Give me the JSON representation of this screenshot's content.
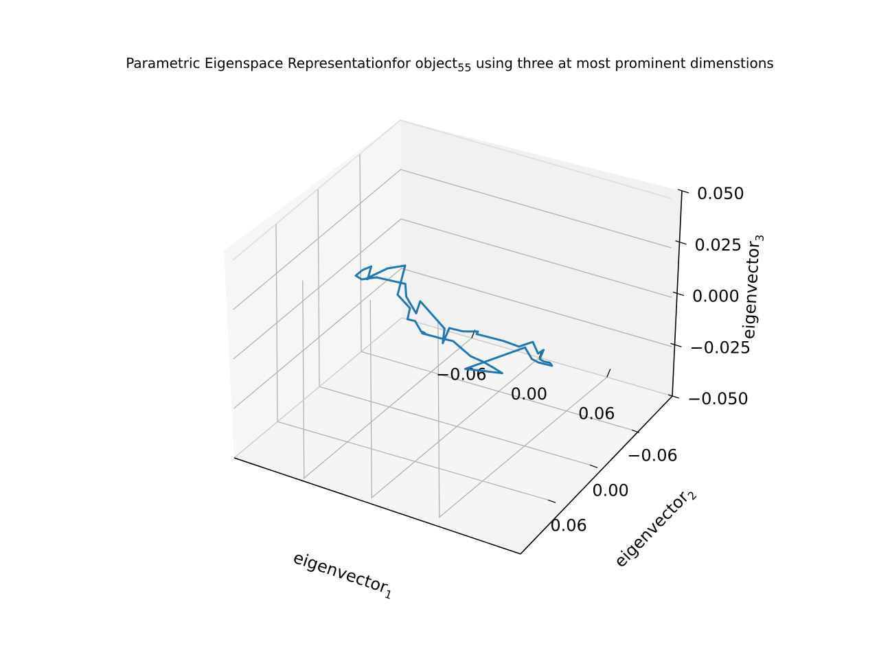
{
  "chart_data": {
    "type": "line3d",
    "title": {
      "main": "Parametric Eigenspace Representationfor object",
      "sub": "55",
      "rest": " using three at most prominent dimenstions"
    },
    "xlabel": {
      "main": "eigenvector",
      "sub": "1"
    },
    "ylabel": {
      "main": "eigenvector",
      "sub": "2"
    },
    "zlabel": {
      "main": "eigenvector",
      "sub": "3"
    },
    "xticks": [
      {
        "value": -0.06,
        "label": "−0.06"
      },
      {
        "value": 0.0,
        "label": "0.00"
      },
      {
        "value": 0.06,
        "label": "0.06"
      }
    ],
    "yticks": [
      {
        "value": -0.06,
        "label": "−0.06"
      },
      {
        "value": 0.0,
        "label": "0.00"
      },
      {
        "value": 0.06,
        "label": "0.06"
      }
    ],
    "zticks": [
      {
        "value": -0.05,
        "label": "−0.050"
      },
      {
        "value": -0.025,
        "label": "−0.025"
      },
      {
        "value": 0.0,
        "label": "0.000"
      },
      {
        "value": 0.025,
        "label": "0.025"
      },
      {
        "value": 0.05,
        "label": "0.050"
      }
    ],
    "xlim": [
      -0.122,
      0.118
    ],
    "ylim": [
      -0.118,
      0.122
    ],
    "zlim": [
      -0.05,
      0.05
    ],
    "grid": true,
    "series": [
      {
        "color": "#1f77b4",
        "points": [
          [
            -0.045,
            0.0,
            0.024
          ],
          [
            -0.03,
            0.035,
            0.022
          ],
          [
            -0.016,
            0.04,
            0.019
          ],
          [
            -0.012,
            0.05,
            0.017
          ],
          [
            -0.004,
            0.052,
            0.018
          ],
          [
            0.005,
            0.058,
            0.016
          ],
          [
            0.01,
            0.061,
            0.017
          ],
          [
            0.007,
            0.06,
            0.016
          ],
          [
            0.022,
            0.057,
            0.015
          ],
          [
            0.032,
            0.056,
            0.015
          ],
          [
            0.047,
            0.055,
            0.0095
          ],
          [
            0.052,
            0.046,
            0.005
          ],
          [
            0.058,
            0.038,
            0.0
          ],
          [
            0.06,
            0.031,
            -0.004
          ],
          [
            0.033,
            0.0405,
            -0.0035
          ],
          [
            0.061,
            0.0,
            0.0
          ],
          [
            0.062,
            -0.008,
            -0.008
          ],
          [
            0.063,
            -0.016,
            -0.012
          ],
          [
            0.064,
            -0.024,
            -0.015
          ],
          [
            0.065,
            -0.032,
            -0.018
          ],
          [
            0.055,
            -0.045,
            -0.022
          ],
          [
            0.045,
            -0.052,
            -0.025
          ],
          [
            0.036,
            -0.061,
            -0.028
          ],
          [
            0.037,
            -0.065,
            -0.0244
          ],
          [
            0.032,
            -0.065,
            -0.027
          ],
          [
            0.0265,
            -0.0665,
            -0.0225
          ],
          [
            0.015,
            -0.065,
            -0.0263
          ],
          [
            0.002,
            -0.064,
            -0.0253
          ],
          [
            -0.012,
            -0.06,
            -0.024
          ],
          [
            -0.02,
            -0.061,
            -0.0246
          ],
          [
            -0.02,
            -0.063,
            -0.0239
          ],
          [
            -0.03,
            -0.058,
            -0.024
          ],
          [
            -0.041,
            -0.056,
            -0.0235
          ],
          [
            -0.042,
            -0.048,
            -0.029
          ],
          [
            -0.036,
            -0.041,
            -0.0185
          ],
          [
            -0.068,
            -0.058,
            -0.015
          ],
          [
            -0.058,
            -0.036,
            -0.013
          ],
          [
            -0.063,
            -0.03,
            -0.0035
          ],
          [
            -0.068,
            -0.037,
            -0.0
          ],
          [
            -0.068,
            -0.021,
            0.006
          ],
          [
            -0.075,
            -0.007,
            0.011
          ],
          [
            -0.083,
            0.001,
            0.011
          ],
          [
            -0.079,
            0.016,
            0.018
          ],
          [
            -0.0695,
            0.0215,
            0.024
          ],
          [
            -0.058,
            0.0275,
            0.0295
          ],
          [
            -0.055,
            0.0375,
            0.0265
          ],
          [
            -0.0605,
            0.0315,
            0.024
          ],
          [
            -0.041,
            0.0315,
            0.0325
          ],
          [
            -0.045,
            0.0,
            0.024
          ]
        ]
      }
    ]
  }
}
